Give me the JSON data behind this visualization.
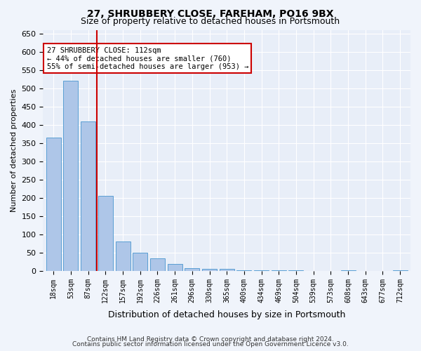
{
  "title1": "27, SHRUBBERY CLOSE, FAREHAM, PO16 9BX",
  "title2": "Size of property relative to detached houses in Portsmouth",
  "xlabel": "Distribution of detached houses by size in Portsmouth",
  "ylabel": "Number of detached properties",
  "categories": [
    "18sqm",
    "53sqm",
    "87sqm",
    "122sqm",
    "157sqm",
    "192sqm",
    "226sqm",
    "261sqm",
    "296sqm",
    "330sqm",
    "365sqm",
    "400sqm",
    "434sqm",
    "469sqm",
    "504sqm",
    "539sqm",
    "573sqm",
    "608sqm",
    "643sqm",
    "677sqm",
    "712sqm"
  ],
  "values": [
    365,
    520,
    410,
    205,
    80,
    50,
    35,
    20,
    8,
    5,
    5,
    2,
    2,
    1,
    1,
    0,
    0,
    1,
    0,
    0,
    1
  ],
  "bar_color": "#aec6e8",
  "bar_edge_color": "#5a9fd4",
  "vline_x": 2.5,
  "vline_color": "#cc0000",
  "annotation_text": "27 SHRUBBERY CLOSE: 112sqm\n← 44% of detached houses are smaller (760)\n55% of semi-detached houses are larger (953) →",
  "annotation_box_color": "#ffffff",
  "annotation_box_edge": "#cc0000",
  "ylim": [
    0,
    660
  ],
  "yticks": [
    0,
    50,
    100,
    150,
    200,
    250,
    300,
    350,
    400,
    450,
    500,
    550,
    600,
    650
  ],
  "footer1": "Contains HM Land Registry data © Crown copyright and database right 2024.",
  "footer2": "Contains public sector information licensed under the Open Government Licence v3.0.",
  "bg_color": "#e8eef8",
  "plot_bg_color": "#e8eef8"
}
